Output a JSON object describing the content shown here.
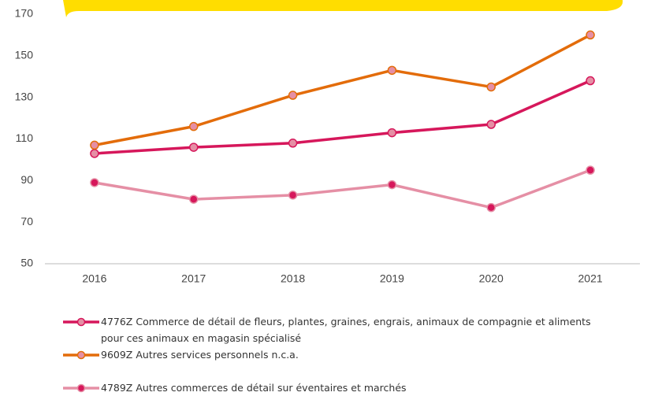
{
  "chart_data": {
    "type": "line",
    "categories": [
      "2016",
      "2017",
      "2018",
      "2019",
      "2020",
      "2021"
    ],
    "series": [
      {
        "name": "4776Z Commerce de détail de fleurs, plantes, graines, engrais, animaux de compagnie et aliments pour ces animaux en magasin spécialisé",
        "color": "#d6175b",
        "marker_color": "#e58fa5",
        "values": [
          103,
          106,
          108,
          113,
          117,
          138
        ]
      },
      {
        "name": "9609Z Autres services personnels n.c.a.",
        "color": "#e36c0a",
        "marker_color": "#e58fa5",
        "values": [
          107,
          116,
          131,
          143,
          135,
          160
        ]
      },
      {
        "name": "4789Z Autres commerces de détail sur éventaires et marchés",
        "color": "#e58fa5",
        "marker_color": "#d6175b",
        "values": [
          89,
          81,
          83,
          88,
          77,
          95
        ]
      }
    ],
    "ylim": [
      50,
      170
    ],
    "yticks": [
      50,
      70,
      90,
      110,
      130,
      150,
      170
    ],
    "grid": false
  }
}
